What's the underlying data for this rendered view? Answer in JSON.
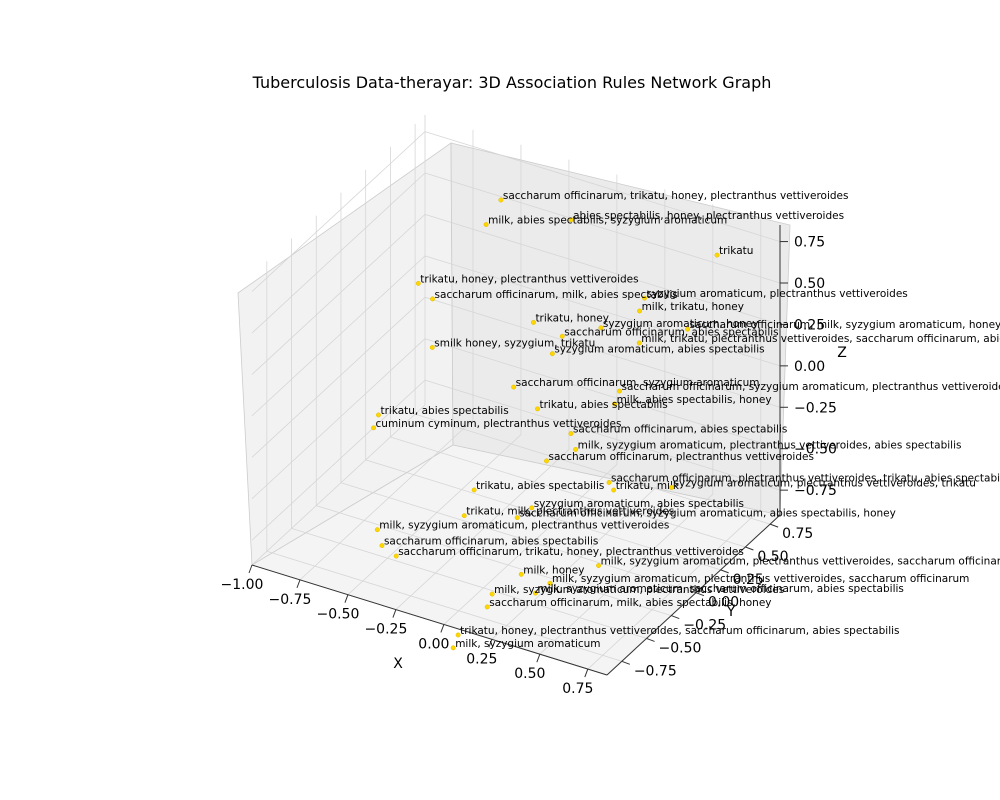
{
  "chart_data": {
    "type": "scatter",
    "projection": "3d",
    "title": "Tuberculosis Data-therayar:  3D Association Rules Network Graph",
    "xlabel": "X",
    "ylabel": "Y",
    "zlabel": "Z",
    "grid": true,
    "marker_color": "#FFD700",
    "x_ticks": [
      "−1.00",
      "−0.75",
      "−0.50",
      "−0.25",
      "0.00",
      "0.25",
      "0.50",
      "0.75"
    ],
    "y_ticks": [
      "−0.75",
      "−0.50",
      "−0.25",
      "0.00",
      "0.25",
      "0.50",
      "0.75"
    ],
    "z_ticks": [
      "−0.75",
      "−0.50",
      "−0.25",
      "0.00",
      "0.25",
      "0.50",
      "0.75"
    ],
    "nodes": [
      {
        "label": "abies spectabilis, honey, plectranthus vettiveroides",
        "x": -0.12,
        "y": 0.62,
        "z": 0.66
      },
      {
        "label": "saccharum officinarum, trikatu, honey, plectranthus vettiveroides",
        "x": -0.45,
        "y": 0.55,
        "z": 0.7
      },
      {
        "label": "milk, abies spectabilis, syzygium aromaticum",
        "x": -0.46,
        "y": 0.42,
        "z": 0.62
      },
      {
        "label": "trikatu",
        "x": 0.64,
        "y": 0.62,
        "z": 0.72
      },
      {
        "label": "syzygium aromaticum, plectranthus vettiveroides",
        "x": 0.35,
        "y": 0.45,
        "z": 0.45
      },
      {
        "label": "milk, trikatu, honey",
        "x": 0.35,
        "y": 0.4,
        "z": 0.4
      },
      {
        "label": "saccharum officinarum, milk, syzygium aromaticum, honey",
        "x": 0.6,
        "y": 0.4,
        "z": 0.38
      },
      {
        "label": "syzygium aromaticum, honey",
        "x": 0.2,
        "y": 0.3,
        "z": 0.3
      },
      {
        "label": "milk, trikatu, plectranthus vettiveroides, saccharum officinarum, abies spectabilis",
        "x": 0.4,
        "y": 0.3,
        "z": 0.28
      },
      {
        "label": "trikatu, honey, plectranthus vettiveroides",
        "x": -0.7,
        "y": 0.2,
        "z": 0.3
      },
      {
        "label": "saccharum officinarum, milk, abies spectabilis",
        "x": -0.6,
        "y": 0.15,
        "z": 0.27
      },
      {
        "label": "trikatu, honey",
        "x": -0.1,
        "y": 0.2,
        "z": 0.28
      },
      {
        "label": "saccharum officinarum, abies spectabilis",
        "x": 0.05,
        "y": 0.2,
        "z": 0.25
      },
      {
        "label": "syzygium aromaticum, abies spectabilis",
        "x": 0.05,
        "y": 0.1,
        "z": 0.2
      },
      {
        "label": "saccharum officinarum, syzygium aromaticum, plectranthus vettiveroides",
        "x": 0.4,
        "y": 0.1,
        "z": 0.1
      },
      {
        "label": "milk, abies spectabilis, honey",
        "x": 0.4,
        "y": 0.05,
        "z": 0.05
      },
      {
        "label": "smilk honey, syzygium, trikatu",
        "x": -0.55,
        "y": 0.05,
        "z": 0.05
      },
      {
        "label": "saccharum officinarum, syzygium aromaticum",
        "x": -0.1,
        "y": 0.0,
        "z": 0.0
      },
      {
        "label": "trikatu, abies spectabilis",
        "x": 0.05,
        "y": -0.05,
        "z": -0.05
      },
      {
        "label": "saccharum officinarum, abies spectabilis",
        "x": 0.25,
        "y": -0.1,
        "z": -0.1
      },
      {
        "label": "milk, syzygium aromaticum, plectranthus vettiveroides, abies spectabilis",
        "x": 0.3,
        "y": -0.15,
        "z": -0.15
      },
      {
        "label": "saccharum officinarum, plectranthus vettiveroides",
        "x": 0.2,
        "y": -0.25,
        "z": -0.2
      },
      {
        "label": "trikatu, milk",
        "x": 0.55,
        "y": -0.25,
        "z": -0.25
      },
      {
        "label": "trikatu, abies spectabilis",
        "x": -0.65,
        "y": -0.3,
        "z": -0.2
      },
      {
        "label": "cuminum cyminum, plectranthus vettiveroides",
        "x": -0.65,
        "y": -0.35,
        "z": -0.25
      },
      {
        "label": "saccharum officinarum, plectranthus vettiveroides, trikatu, abies spectabilis",
        "x": 0.5,
        "y": -0.2,
        "z": -0.25
      },
      {
        "label": "syzygium aromaticum, plectranthus vettiveroides, trikatu",
        "x": 0.8,
        "y": -0.15,
        "z": -0.2
      },
      {
        "label": "trikatu, abies spectabilis",
        "x": -0.1,
        "y": -0.4,
        "z": -0.4
      },
      {
        "label": "syzygium aromaticum, abies spectabilis",
        "x": 0.2,
        "y": -0.4,
        "z": -0.4
      },
      {
        "label": "saccharum officinarum, syzygium aromaticum, abies spectabilis, honey",
        "x": 0.15,
        "y": -0.45,
        "z": -0.45
      },
      {
        "label": "trikatu, milk, plectranthus vettiveroides",
        "x": -0.1,
        "y": -0.5,
        "z": -0.5
      },
      {
        "label": "milk, syzygium aromaticum, plectranthus vettiveroides, saccharum officinarum",
        "x": 0.6,
        "y": -0.5,
        "z": -0.55
      },
      {
        "label": "milk, syzygium aromaticum, plectranthus vettiveroides",
        "x": -0.45,
        "y": -0.7,
        "z": -0.6
      },
      {
        "label": "saccharum officinarum, abies spectabilis",
        "x": -0.4,
        "y": -0.75,
        "z": -0.65
      },
      {
        "label": "milk, honey",
        "x": 0.3,
        "y": -0.7,
        "z": -0.6
      },
      {
        "label": "milk, syzygium aromaticum, plectranthus vettiveroides, saccharum officinarum",
        "x": 0.45,
        "y": -0.7,
        "z": -0.6
      },
      {
        "label": "milk, syzygium aromaticum, saccharum officinarum, abies spectabilis",
        "x": 0.4,
        "y": -0.75,
        "z": -0.65
      },
      {
        "label": "saccharum officinarum, trikatu, honey, plectranthus vettiveroides",
        "x": -0.3,
        "y": -0.8,
        "z": -0.65
      },
      {
        "label": "milk, syzygium aromaticum, plectranthus vettiveroides",
        "x": 0.2,
        "y": -0.8,
        "z": -0.7
      },
      {
        "label": "saccharum officinarum, milk, abies spectabilis, honey",
        "x": 0.2,
        "y": -0.85,
        "z": -0.75
      },
      {
        "label": "trikatu, honey, plectranthus vettiveroides, saccharum officinarum, abies spectabilis",
        "x": 0.1,
        "y": -0.95,
        "z": -0.9
      },
      {
        "label": "milk, syzygium aromaticum",
        "x": 0.1,
        "y": -1.0,
        "z": -0.95
      }
    ]
  }
}
